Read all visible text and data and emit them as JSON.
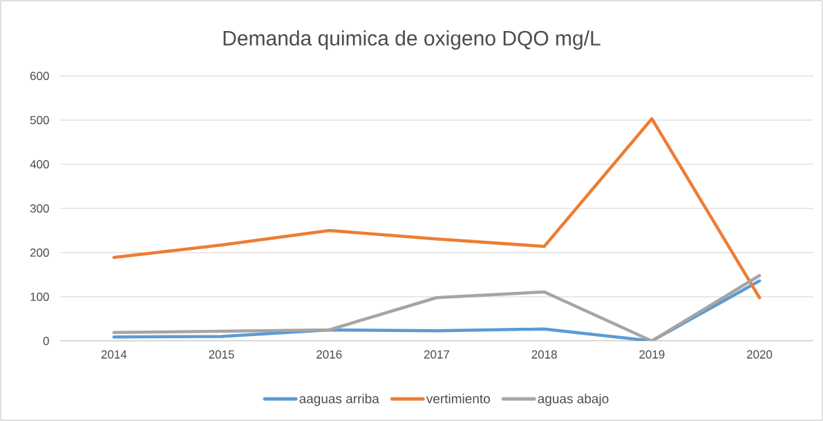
{
  "chart_data": {
    "type": "line",
    "title": "Demanda quimica de oxigeno DQO mg/L",
    "categories": [
      "2014",
      "2015",
      "2016",
      "2017",
      "2018",
      "2019",
      "2020"
    ],
    "series": [
      {
        "name": "aaguas arriba",
        "color": "#5b9bd5",
        "values": [
          9,
          10,
          25,
          23,
          27,
          0,
          136
        ]
      },
      {
        "name": "vertimiento",
        "color": "#ed7d31",
        "values": [
          189,
          217,
          250,
          231,
          214,
          503,
          98
        ]
      },
      {
        "name": "aguas abajo",
        "color": "#a5a5a5",
        "values": [
          19,
          22,
          25,
          98,
          111,
          0,
          148
        ]
      }
    ],
    "ylim": [
      0,
      600
    ],
    "yticks": [
      0,
      100,
      200,
      300,
      400,
      500,
      600
    ],
    "grid": "y",
    "legend": "bottom",
    "marker": "none",
    "line_style": "solid"
  }
}
